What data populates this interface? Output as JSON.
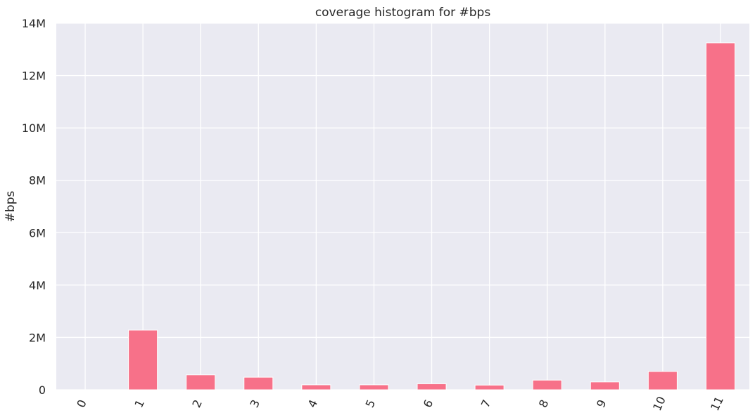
{
  "chart_data": {
    "type": "bar",
    "title": "coverage histogram for #bps",
    "xlabel": "",
    "ylabel": "#bps",
    "categories": [
      "0",
      "1",
      "2",
      "3",
      "4",
      "5",
      "6",
      "7",
      "8",
      "9",
      "10",
      "11"
    ],
    "values": [
      0,
      2280000,
      570000,
      480000,
      190000,
      190000,
      230000,
      180000,
      370000,
      300000,
      700000,
      13250000
    ],
    "ylim": [
      0,
      14000000
    ],
    "yticks": [
      0,
      2000000,
      4000000,
      6000000,
      8000000,
      10000000,
      12000000,
      14000000
    ],
    "ytick_labels": [
      "0",
      "2M",
      "4M",
      "6M",
      "8M",
      "10M",
      "12M",
      "14M"
    ],
    "grid": true,
    "legend": "none",
    "colors": {
      "bar": "#f77189",
      "background": "#eaeaf2",
      "grid": "#ffffff",
      "text": "#262626"
    }
  }
}
